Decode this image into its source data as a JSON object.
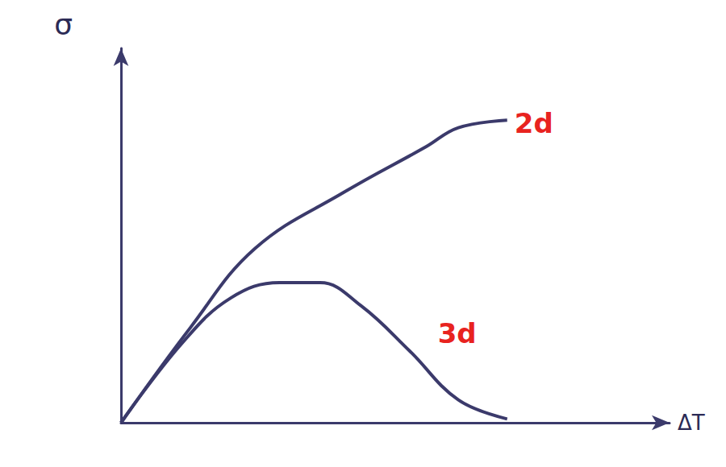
{
  "chart_data": {
    "type": "line",
    "x_label": "ΔT",
    "y_label": "σ",
    "xlim": [
      0,
      10
    ],
    "ylim": [
      0,
      10
    ],
    "tick_labels": false,
    "grid": false,
    "series": [
      {
        "name": "2d",
        "color": "#3b3a6b",
        "x": [
          0,
          1.26,
          2.44,
          4.07,
          5.56,
          6.15,
          7.04
        ],
        "values": [
          0,
          2.53,
          4.65,
          6.16,
          7.37,
          7.88,
          8.08
        ]
      },
      {
        "name": "3d",
        "color": "#3b3a6b",
        "x": [
          0,
          1.11,
          2.0,
          2.89,
          3.63,
          4.37,
          5.26,
          6.15,
          7.04
        ],
        "values": [
          0,
          2.12,
          3.33,
          3.74,
          3.74,
          3.13,
          1.92,
          0.61,
          0.1
        ]
      }
    ]
  }
}
